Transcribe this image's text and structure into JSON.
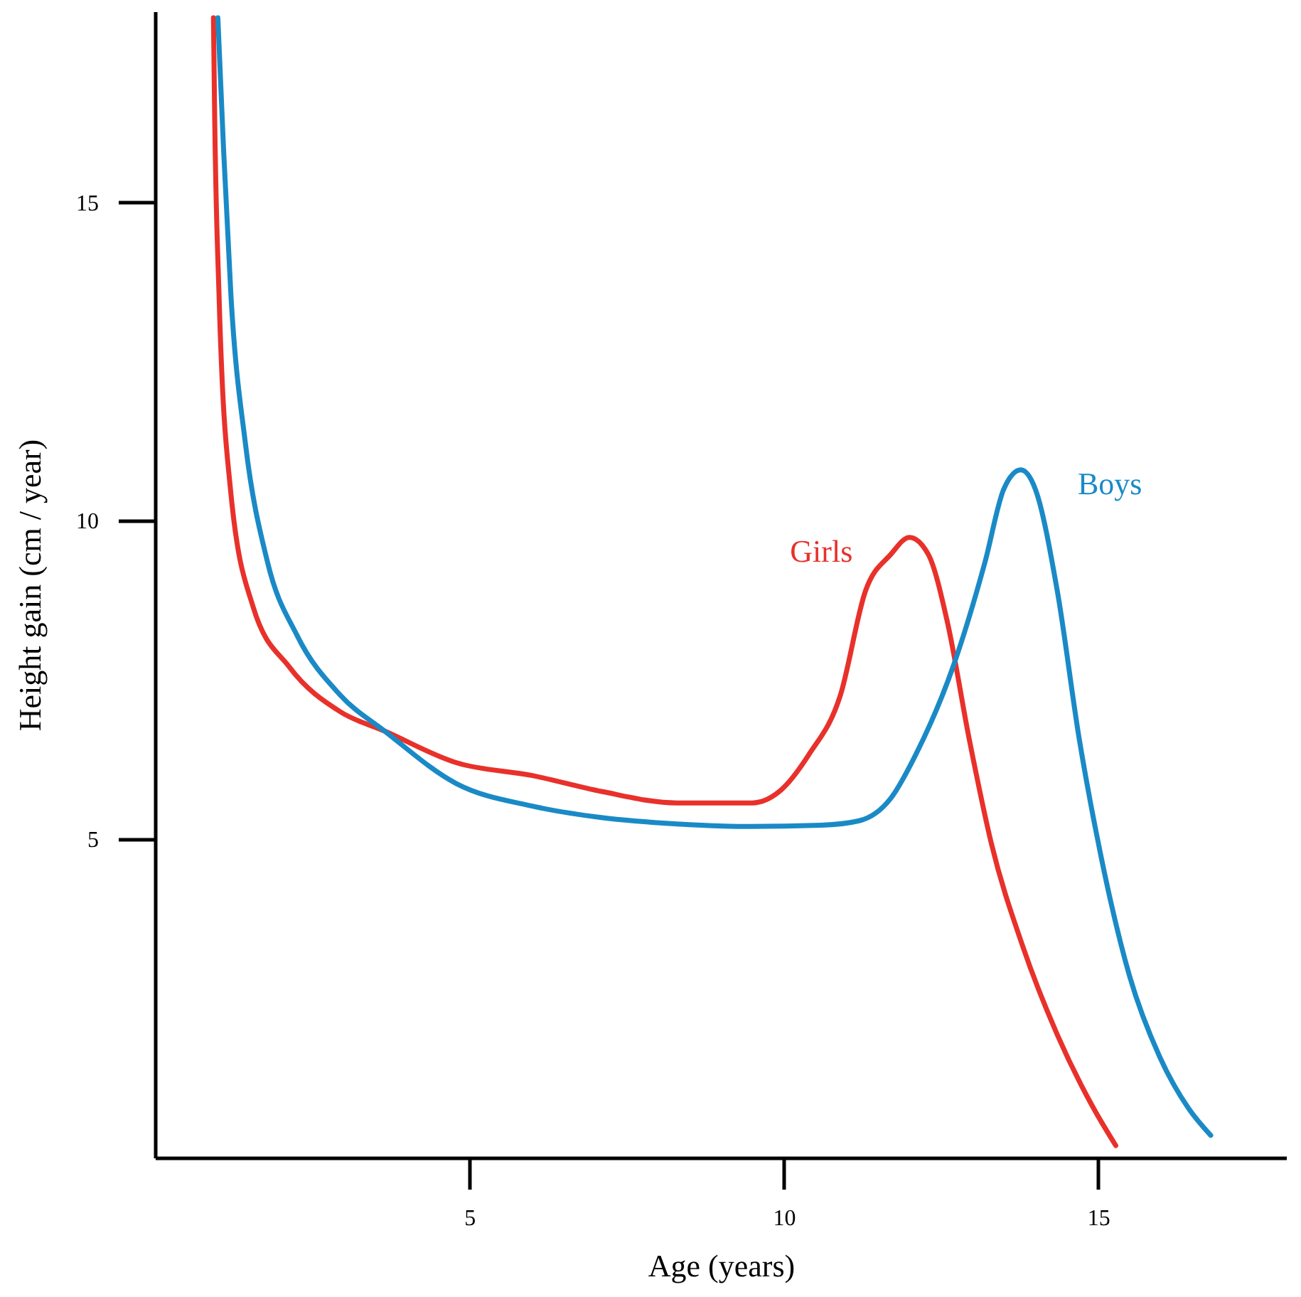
{
  "chart_data": {
    "type": "line",
    "xlabel": "Age (years)",
    "ylabel": "Height gain (cm / year)",
    "xlim": [
      0,
      18
    ],
    "ylim": [
      0,
      18
    ],
    "xticks": [
      5,
      10,
      15
    ],
    "yticks": [
      5,
      10,
      15
    ],
    "grid": false,
    "marker": "none",
    "line_style": "solid",
    "series": [
      {
        "name": "Girls",
        "color": "#e8312a",
        "x": [
          0.93,
          0.95,
          1.02,
          1.2,
          1.56,
          2.14,
          2.95,
          3.65,
          4.8,
          6.0,
          7.1,
          8.3,
          9.5,
          9.93,
          10.4,
          10.9,
          11.3,
          11.7,
          12.0,
          12.3,
          12.6,
          12.95,
          13.3,
          13.8,
          14.35,
          14.93,
          15.28
        ],
        "values": [
          17.9,
          16.3,
          13.5,
          10.5,
          8.65,
          7.7,
          7.0,
          6.7,
          6.2,
          6.0,
          5.75,
          5.57,
          5.57,
          5.75,
          6.33,
          7.26,
          8.9,
          9.47,
          9.74,
          9.47,
          8.42,
          6.57,
          4.94,
          3.32,
          1.93,
          0.77,
          0.19
        ]
      },
      {
        "name": "Boys",
        "color": "#1a8ac6",
        "x": [
          1.0,
          1.09,
          1.21,
          1.44,
          1.79,
          2.26,
          2.95,
          3.65,
          4.8,
          6.0,
          7.1,
          8.3,
          9.47,
          10.6,
          11.2,
          11.7,
          12.1,
          12.7,
          13.2,
          13.5,
          13.77,
          14.0,
          14.35,
          14.7,
          15.05,
          15.5,
          15.98,
          16.44,
          16.79
        ],
        "values": [
          17.9,
          15.85,
          13.5,
          11.2,
          9.35,
          8.2,
          7.26,
          6.7,
          5.87,
          5.52,
          5.34,
          5.24,
          5.2,
          5.22,
          5.29,
          5.64,
          6.33,
          7.73,
          9.35,
          10.5,
          10.8,
          10.5,
          8.9,
          6.57,
          4.71,
          2.85,
          1.58,
          0.77,
          0.35
        ]
      }
    ]
  }
}
